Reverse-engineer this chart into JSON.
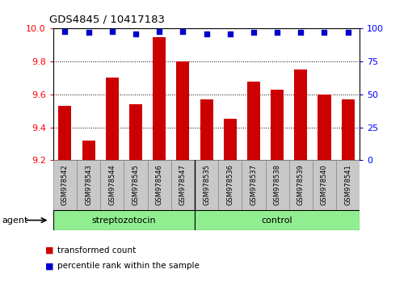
{
  "title": "GDS4845 / 10417183",
  "categories": [
    "GSM978542",
    "GSM978543",
    "GSM978544",
    "GSM978545",
    "GSM978546",
    "GSM978547",
    "GSM978535",
    "GSM978536",
    "GSM978537",
    "GSM978538",
    "GSM978539",
    "GSM978540",
    "GSM978541"
  ],
  "bar_values": [
    9.53,
    9.32,
    9.7,
    9.54,
    9.95,
    9.8,
    9.57,
    9.45,
    9.68,
    9.63,
    9.75,
    9.6,
    9.57
  ],
  "percentile_values": [
    98,
    97,
    98,
    96,
    98,
    98,
    96,
    96,
    97,
    97,
    97,
    97,
    97
  ],
  "bar_color": "#cc0000",
  "percentile_color": "#0000cc",
  "ymin": 9.2,
  "ymax": 10.0,
  "y2min": 0,
  "y2max": 100,
  "yticks": [
    9.2,
    9.4,
    9.6,
    9.8,
    10.0
  ],
  "y2ticks": [
    0,
    25,
    50,
    75,
    100
  ],
  "group1_label": "streptozotocin",
  "group2_label": "control",
  "group1_count": 6,
  "group2_count": 7,
  "legend_bar_label": "transformed count",
  "legend_pct_label": "percentile rank within the sample",
  "xlabel_agent": "agent",
  "bar_width": 0.55,
  "group_box_color": "#90ee90",
  "tick_area_color": "#c8c8c8",
  "figsize": [
    5.06,
    3.54
  ],
  "dpi": 100
}
